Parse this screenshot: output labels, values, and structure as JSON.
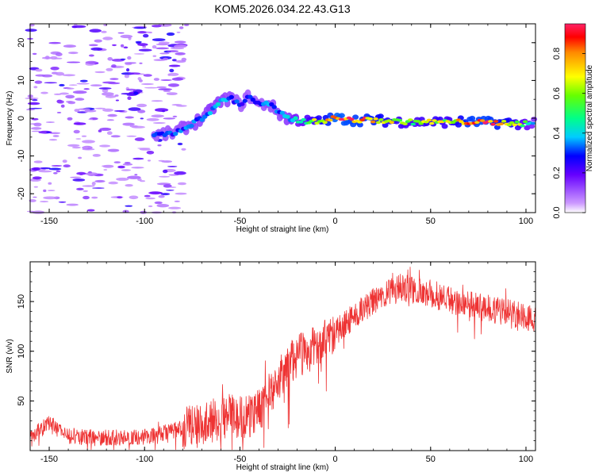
{
  "chart_data": [
    {
      "type": "heatmap",
      "title": "KOM5.2026.034.22.43.G13",
      "xlabel": "Height of straight line (km)",
      "ylabel": "Frequency (Hz)",
      "xlim": [
        -160,
        105
      ],
      "ylim": [
        -25,
        25
      ],
      "xticks": [
        -150,
        -100,
        -50,
        0,
        50,
        100
      ],
      "yticks": [
        -20,
        -10,
        0,
        10,
        20
      ],
      "colorbar": {
        "label": "Normalized spectral amplitude",
        "range": [
          0,
          0.95
        ],
        "ticks": [
          0.0,
          0.2,
          0.4,
          0.6,
          0.8
        ]
      },
      "ridge": [
        {
          "h": -95,
          "f": -4.5,
          "a": 0.3
        },
        {
          "h": -85,
          "f": -4.0,
          "a": 0.32
        },
        {
          "h": -75,
          "f": -1.5,
          "a": 0.35
        },
        {
          "h": -68,
          "f": 0.5,
          "a": 0.38
        },
        {
          "h": -63,
          "f": 3.5,
          "a": 0.4
        },
        {
          "h": -55,
          "f": 5.5,
          "a": 0.35
        },
        {
          "h": -50,
          "f": 3.5,
          "a": 0.3
        },
        {
          "h": -45,
          "f": 6.0,
          "a": 0.3
        },
        {
          "h": -40,
          "f": 3.5,
          "a": 0.3
        },
        {
          "h": -35,
          "f": 4.0,
          "a": 0.35
        },
        {
          "h": -30,
          "f": 1.5,
          "a": 0.35
        },
        {
          "h": -25,
          "f": 0.0,
          "a": 0.4
        },
        {
          "h": -20,
          "f": -0.5,
          "a": 0.5
        },
        {
          "h": -10,
          "f": -1.0,
          "a": 0.7
        },
        {
          "h": 0,
          "f": 0.0,
          "a": 0.95
        },
        {
          "h": 10,
          "f": -0.5,
          "a": 0.9
        },
        {
          "h": 20,
          "f": -0.5,
          "a": 0.85
        },
        {
          "h": 30,
          "f": -0.8,
          "a": 0.7
        },
        {
          "h": 40,
          "f": -1.0,
          "a": 0.6
        },
        {
          "h": 50,
          "f": -1.0,
          "a": 0.7
        },
        {
          "h": 60,
          "f": -1.0,
          "a": 0.65
        },
        {
          "h": 70,
          "f": -1.0,
          "a": 0.9
        },
        {
          "h": 80,
          "f": -1.2,
          "a": 0.9
        },
        {
          "h": 90,
          "f": -1.2,
          "a": 0.8
        },
        {
          "h": 100,
          "f": -1.5,
          "a": 0.55
        },
        {
          "h": 105,
          "f": -1.5,
          "a": 0.4
        }
      ],
      "noise_region_h": [
        -160,
        -78
      ]
    },
    {
      "type": "line",
      "title": "",
      "xlabel": "Height of straight line (km)",
      "ylabel": "SNR (v/v)",
      "xlim": [
        -160,
        105
      ],
      "ylim": [
        0,
        190
      ],
      "xticks": [
        -150,
        -100,
        -50,
        0,
        50,
        100
      ],
      "yticks": [
        50,
        100,
        150
      ],
      "series": [
        {
          "name": "SNR",
          "color": "#ee3333",
          "envelope_x": [
            -160,
            -155,
            -150,
            -140,
            -120,
            -100,
            -85,
            -75,
            -65,
            -55,
            -45,
            -40,
            -35,
            -30,
            -25,
            -20,
            -15,
            -10,
            -5,
            0,
            10,
            20,
            30,
            35,
            40,
            50,
            60,
            70,
            80,
            90,
            100,
            105
          ],
          "envelope_y": [
            15,
            20,
            28,
            14,
            13,
            14,
            20,
            25,
            30,
            35,
            35,
            40,
            55,
            70,
            85,
            95,
            100,
            105,
            110,
            120,
            135,
            150,
            160,
            165,
            162,
            158,
            152,
            148,
            143,
            140,
            135,
            132
          ]
        }
      ]
    }
  ]
}
